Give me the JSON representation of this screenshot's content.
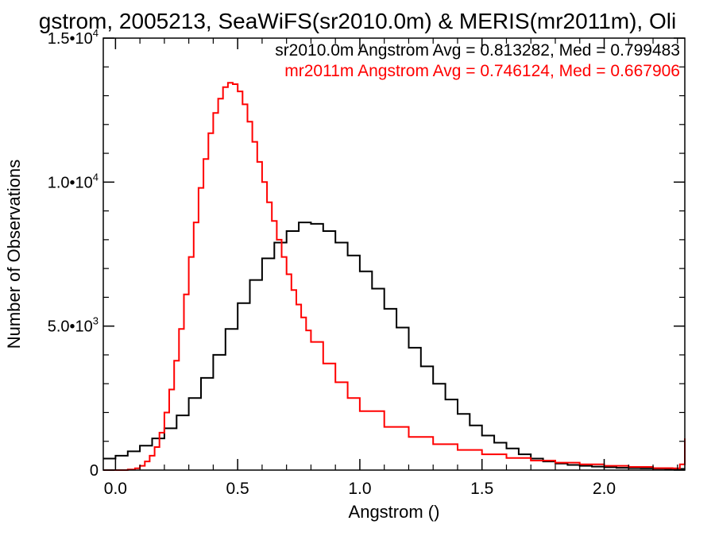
{
  "chart_data": {
    "type": "line",
    "title": "gstrom, 2005213, SeaWiFS(sr2010.0m) & MERIS(mr2011m), Oli",
    "xlabel": "Angstrom ()",
    "ylabel": "Number of Observations",
    "xlim": [
      -0.05,
      2.33
    ],
    "ylim": [
      0,
      15000
    ],
    "x_ticks": [
      {
        "value": 0.0,
        "label": "0.0"
      },
      {
        "value": 0.5,
        "label": "0.5"
      },
      {
        "value": 1.0,
        "label": "1.0"
      },
      {
        "value": 1.5,
        "label": "1.5"
      },
      {
        "value": 2.0,
        "label": "2.0"
      }
    ],
    "y_ticks": [
      {
        "value": 0,
        "label": "0",
        "exp": ""
      },
      {
        "value": 5000,
        "label": "5.0•10",
        "exp": "3"
      },
      {
        "value": 10000,
        "label": "1.0•10",
        "exp": "4"
      },
      {
        "value": 15000,
        "label": "1.5•10",
        "exp": "4"
      }
    ],
    "grid": false,
    "line_style": "step",
    "annotations": [
      {
        "text": "sr2010.0m Angstrom Avg = 0.813282, Med = 0.799483",
        "color": "#000000"
      },
      {
        "text": "mr2011m Angstrom Avg = 0.746124, Med = 0.667906",
        "color": "#ff0000"
      }
    ],
    "series": [
      {
        "color": "#000000",
        "x": [
          -0.05,
          0.0,
          0.05,
          0.1,
          0.15,
          0.2,
          0.25,
          0.3,
          0.35,
          0.4,
          0.45,
          0.5,
          0.55,
          0.6,
          0.65,
          0.7,
          0.75,
          0.8,
          0.85,
          0.9,
          0.95,
          1.0,
          1.05,
          1.1,
          1.15,
          1.2,
          1.25,
          1.3,
          1.35,
          1.4,
          1.45,
          1.5,
          1.55,
          1.6,
          1.65,
          1.7,
          1.75,
          1.8,
          1.85,
          1.9,
          1.95,
          2.0,
          2.05,
          2.1,
          2.15,
          2.2,
          2.25,
          2.3,
          2.33
        ],
        "y": [
          400,
          500,
          650,
          850,
          1100,
          1450,
          1900,
          2500,
          3200,
          4000,
          4900,
          5800,
          6600,
          7350,
          7900,
          8300,
          8600,
          8550,
          8300,
          7900,
          7450,
          6900,
          6300,
          5600,
          4950,
          4250,
          3600,
          3000,
          2450,
          1950,
          1550,
          1200,
          950,
          750,
          550,
          400,
          300,
          230,
          180,
          150,
          120,
          100,
          80,
          70,
          60,
          50,
          40,
          40,
          40
        ]
      },
      {
        "color": "#ff0000",
        "x": [
          -0.05,
          0.0,
          0.05,
          0.08,
          0.1,
          0.12,
          0.14,
          0.16,
          0.18,
          0.2,
          0.22,
          0.24,
          0.26,
          0.28,
          0.3,
          0.32,
          0.34,
          0.36,
          0.38,
          0.4,
          0.42,
          0.44,
          0.46,
          0.48,
          0.5,
          0.52,
          0.54,
          0.56,
          0.58,
          0.6,
          0.62,
          0.64,
          0.66,
          0.68,
          0.7,
          0.72,
          0.74,
          0.76,
          0.78,
          0.8,
          0.85,
          0.9,
          0.95,
          1.0,
          1.1,
          1.2,
          1.3,
          1.4,
          1.5,
          1.6,
          1.7,
          1.8,
          1.9,
          2.0,
          2.1,
          2.2,
          2.28,
          2.31,
          2.33
        ],
        "y": [
          0,
          0,
          20,
          60,
          150,
          300,
          500,
          800,
          1300,
          2000,
          2800,
          3800,
          4900,
          6100,
          7400,
          8600,
          9800,
          10800,
          11700,
          12400,
          12900,
          13300,
          13450,
          13400,
          13150,
          12700,
          12100,
          11400,
          10700,
          10000,
          9300,
          8650,
          8000,
          7400,
          6800,
          6250,
          5750,
          5300,
          4850,
          4450,
          3700,
          3050,
          2500,
          2050,
          1500,
          1150,
          900,
          700,
          550,
          420,
          330,
          260,
          200,
          150,
          110,
          70,
          60,
          200,
          1100
        ]
      }
    ]
  }
}
